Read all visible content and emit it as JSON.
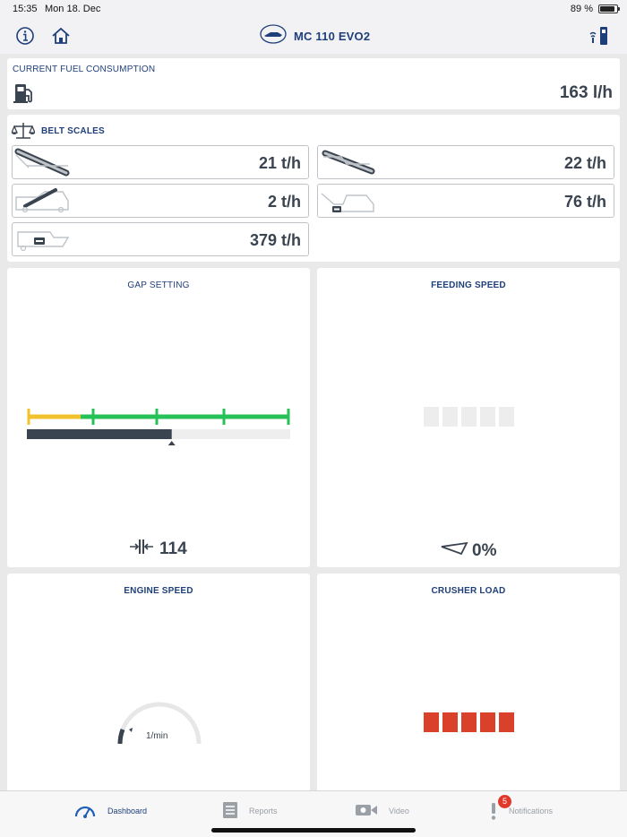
{
  "status_bar": {
    "time": "15:35",
    "date": "Mon 18. Dec",
    "battery": "89 %",
    "battery_level": 0.89
  },
  "nav": {
    "title": "MC 110 EVO2",
    "icons": [
      "info-icon",
      "home-icon",
      "machine-logo-icon",
      "remote-connection-icon"
    ]
  },
  "fuel": {
    "title": "CURRENT FUEL CONSUMPTION",
    "value": "163 l/h",
    "icon": "fuel-pump-icon"
  },
  "belt_scales": {
    "title": "BELT SCALES",
    "icon": "scales-icon",
    "items": [
      {
        "icon": "conveyor-belt-1-icon",
        "value": "21 t/h"
      },
      {
        "icon": "conveyor-belt-2-icon",
        "value": "22 t/h"
      },
      {
        "icon": "crusher-side-belt-icon",
        "value": "2 t/h"
      },
      {
        "icon": "crusher-discharge-belt-icon",
        "value": "76 t/h"
      },
      {
        "icon": "main-belt-icon",
        "value": "379 t/h"
      }
    ]
  },
  "gap_setting": {
    "title": "GAP SETTING",
    "value": "114",
    "icon": "gap-width-icon",
    "fill_fraction": 0.55,
    "colors": {
      "warning": "#f1c22e",
      "ok": "#27c257",
      "bar": "#3a4450"
    }
  },
  "feeding_speed": {
    "title": "FEEDING SPEED",
    "value": "0%",
    "icon": "feeder-icon",
    "segments_active": 0,
    "segments_total": 5
  },
  "engine_speed": {
    "title": "ENGINE SPEED",
    "unit": "1/min",
    "icon": "tachometer-icon"
  },
  "crusher_load": {
    "title": "CRUSHER LOAD",
    "segments_active": 5,
    "segments_total": 5,
    "color": "#d9412b"
  },
  "tabs": [
    {
      "label": "Dashboard",
      "icon": "dashboard-gauge-icon",
      "active": true
    },
    {
      "label": "Reports",
      "icon": "reports-list-icon",
      "active": false
    },
    {
      "label": "Video",
      "icon": "video-camera-icon",
      "active": false
    },
    {
      "label": "Notifications",
      "icon": "exclamation-icon",
      "active": false,
      "badge": "5"
    }
  ]
}
